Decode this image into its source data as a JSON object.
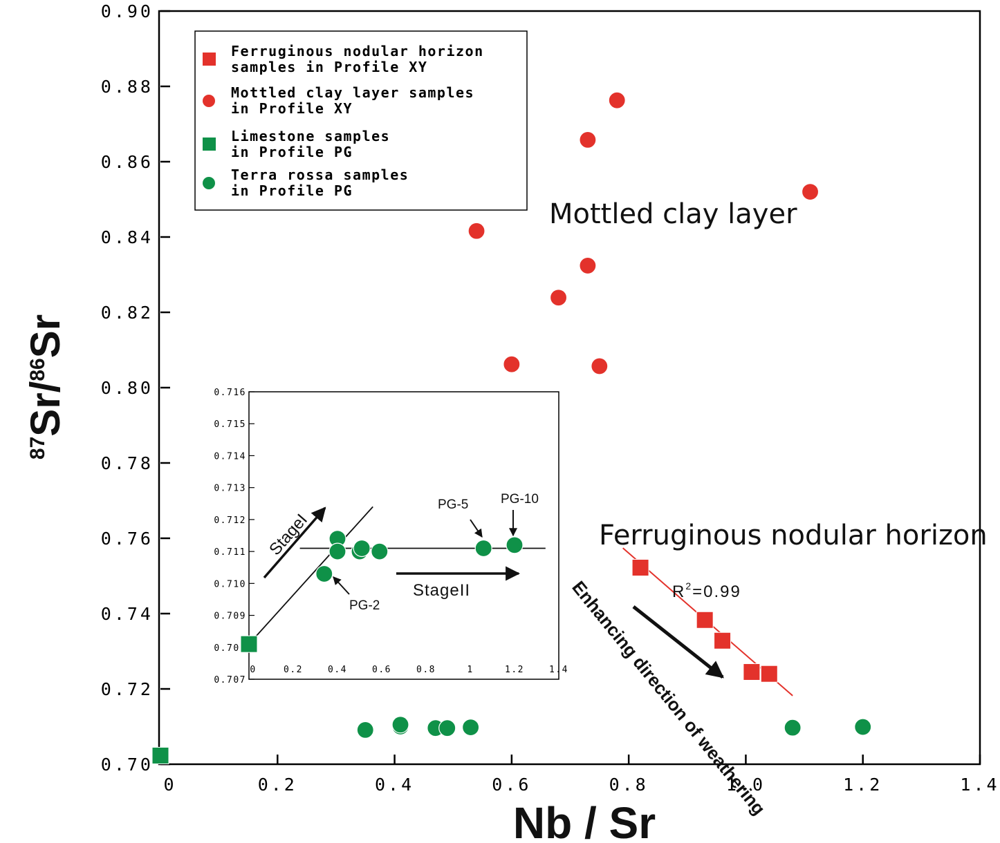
{
  "colors": {
    "red": "#e3322b",
    "green": "#0f9148",
    "axis": "#000000"
  },
  "chart_data": [
    {
      "type": "scatter",
      "title": "",
      "xlabel": "Nb / Sr",
      "ylabel": {
        "sup1": "87",
        "main1": "Sr/",
        "sup2": "86",
        "main2": "Sr"
      },
      "xlim": [
        0,
        1.4
      ],
      "ylim": [
        0.7,
        0.9
      ],
      "xticks": [
        {
          "value": 0,
          "label": "0"
        },
        {
          "value": 0.2,
          "label": "0.2"
        },
        {
          "value": 0.4,
          "label": "0.4"
        },
        {
          "value": 0.6,
          "label": "0.6"
        },
        {
          "value": 0.8,
          "label": "0.8"
        },
        {
          "value": 1.0,
          "label": "1.0"
        },
        {
          "value": 1.2,
          "label": "1.2"
        },
        {
          "value": 1.4,
          "label": "1.4"
        }
      ],
      "yticks": [
        {
          "value": 0.7,
          "label": "0.70"
        },
        {
          "value": 0.72,
          "label": "0.72"
        },
        {
          "value": 0.74,
          "label": "0.74"
        },
        {
          "value": 0.76,
          "label": "0.76"
        },
        {
          "value": 0.78,
          "label": "0.78"
        },
        {
          "value": 0.8,
          "label": "0.80"
        },
        {
          "value": 0.82,
          "label": "0.82"
        },
        {
          "value": 0.84,
          "label": "0.84"
        },
        {
          "value": 0.86,
          "label": "0.86"
        },
        {
          "value": 0.88,
          "label": "0.88"
        },
        {
          "value": 0.9,
          "label": "0.90"
        }
      ],
      "legend_position": "top-left",
      "series": [
        {
          "name": "Ferruginous nodular horizon samples in Profile XY",
          "legend_lines": [
            "Ferruginous nodular horizon",
            "samples in Profile XY"
          ],
          "marker": "square",
          "color": "#e3322b",
          "points": [
            [
              0.82,
              0.7522
            ],
            [
              0.93,
              0.7383
            ],
            [
              0.96,
              0.7328
            ],
            [
              1.01,
              0.7245
            ],
            [
              1.04,
              0.724
            ]
          ]
        },
        {
          "name": "Mottled clay layer samples in Profile XY",
          "legend_lines": [
            "Mottled clay layer samples",
            "in Profile XY"
          ],
          "marker": "circle",
          "color": "#e3322b",
          "points": [
            [
              0.78,
              0.8763
            ],
            [
              0.73,
              0.8658
            ],
            [
              1.11,
              0.852
            ],
            [
              0.54,
              0.8416
            ],
            [
              0.73,
              0.8324
            ],
            [
              0.68,
              0.8239
            ],
            [
              0.6,
              0.8062
            ],
            [
              0.75,
              0.8057
            ]
          ]
        },
        {
          "name": "Limestone samples in Profile PG",
          "legend_lines": [
            "Limestone samples",
            "in Profile PG"
          ],
          "marker": "square",
          "color": "#0f9148",
          "points": [
            [
              0.0,
              0.7023
            ]
          ]
        },
        {
          "name": "Terra rossa samples in Profile PG",
          "legend_lines": [
            "Terra rossa samples",
            "in Profile PG"
          ],
          "marker": "circle",
          "color": "#0f9148",
          "points": [
            [
              0.35,
              0.7091
            ],
            [
              0.41,
              0.71
            ],
            [
              0.41,
              0.7105
            ],
            [
              0.47,
              0.7096
            ],
            [
              0.49,
              0.7096
            ],
            [
              0.53,
              0.7098
            ],
            [
              1.08,
              0.7097
            ],
            [
              1.2,
              0.7099
            ]
          ]
        }
      ],
      "trendline": {
        "from": [
          0.79,
          0.7574
        ],
        "to": [
          1.08,
          0.7182
        ],
        "color": "#e3322b",
        "label_base": "R",
        "label_sup": "2",
        "label_rest": "=0.99"
      },
      "annotations": {
        "mottled": "Mottled clay layer",
        "ferruginous": "Ferruginous nodular horizon",
        "weathering": "Enhancing direction of weathering"
      }
    },
    {
      "type": "scatter",
      "title": "",
      "xlabel": "",
      "ylabel": "",
      "xlim": [
        0,
        1.4
      ],
      "ylim": [
        0.707,
        0.716
      ],
      "xticks": [
        {
          "value": 0,
          "label": "0"
        },
        {
          "value": 0.2,
          "label": "0.2"
        },
        {
          "value": 0.4,
          "label": "0.4"
        },
        {
          "value": 0.6,
          "label": "0.6"
        },
        {
          "value": 0.8,
          "label": "0.8"
        },
        {
          "value": 1.0,
          "label": "1"
        },
        {
          "value": 1.2,
          "label": "1.2"
        },
        {
          "value": 1.4,
          "label": "1.4"
        }
      ],
      "yticks": [
        {
          "value": 0.707,
          "label": "0.707"
        },
        {
          "value": 0.708,
          "label": "0.708"
        },
        {
          "value": 0.709,
          "label": "0.709"
        },
        {
          "value": 0.71,
          "label": "0.710"
        },
        {
          "value": 0.711,
          "label": "0.711"
        },
        {
          "value": 0.712,
          "label": "0.712"
        },
        {
          "value": 0.713,
          "label": "0.713"
        },
        {
          "value": 0.714,
          "label": "0.714"
        },
        {
          "value": 0.715,
          "label": "0.715"
        },
        {
          "value": 0.716,
          "label": "0.716"
        }
      ],
      "series": [
        {
          "name": "",
          "marker": "square",
          "color": "#0f9148",
          "points": [
            [
              0.0,
              0.7081
            ]
          ]
        },
        {
          "name": "",
          "marker": "circle",
          "color": "#0f9148",
          "points": [
            [
              0.34,
              0.7103
            ],
            [
              0.4,
              0.7114
            ],
            [
              0.4,
              0.711
            ],
            [
              0.5,
              0.711
            ],
            [
              0.51,
              0.7111
            ],
            [
              0.59,
              0.711
            ],
            [
              1.06,
              0.7111
            ],
            [
              1.2,
              0.7112
            ]
          ]
        }
      ],
      "lines": [
        {
          "from": [
            0.0,
            0.7081
          ],
          "to": [
            0.56,
            0.7124
          ]
        },
        {
          "from": [
            0.23,
            0.7111
          ],
          "to": [
            1.34,
            0.7111
          ]
        }
      ],
      "annotations": {
        "stage1": "StageI",
        "stage2": "StageII",
        "pg2": "PG-2",
        "pg5": "PG-5",
        "pg10": "PG-10"
      }
    }
  ]
}
